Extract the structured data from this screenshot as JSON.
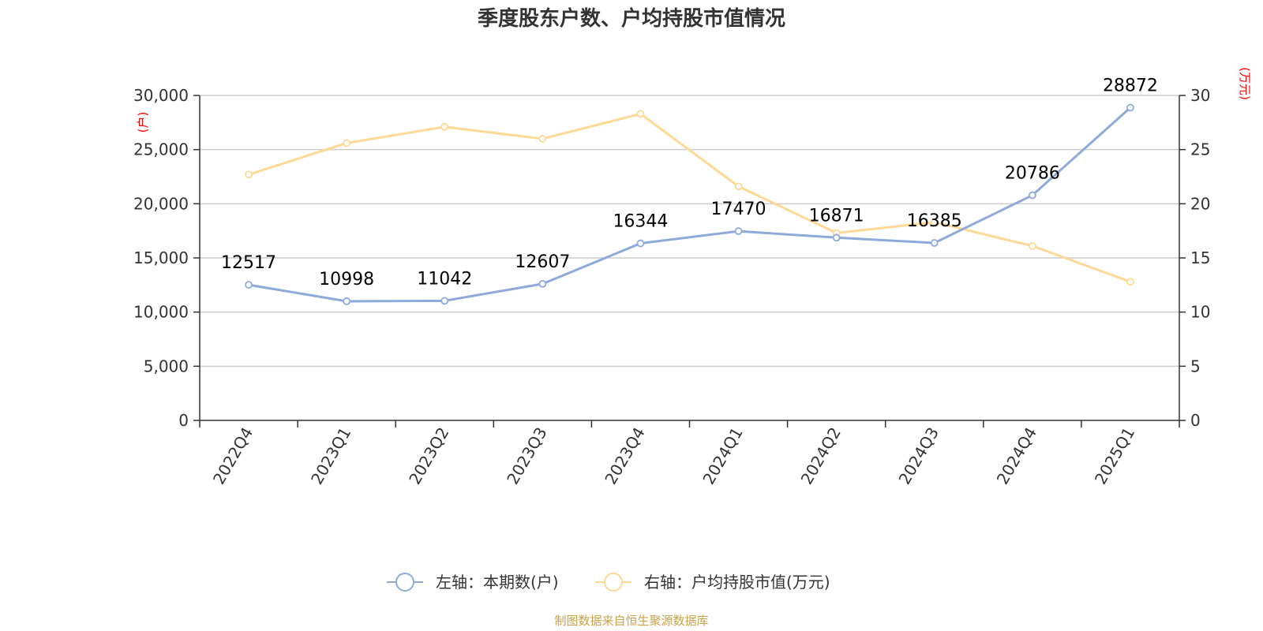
{
  "chart_data": {
    "type": "line",
    "title": "季度股东户数、户均持股市值情况",
    "categories": [
      "2022Q4",
      "2023Q1",
      "2023Q2",
      "2023Q3",
      "2023Q4",
      "2024Q1",
      "2024Q2",
      "2024Q3",
      "2024Q4",
      "2025Q1"
    ],
    "left_axis": {
      "unit": "(户)",
      "ylim": [
        0,
        30000
      ],
      "ticks": [
        "0",
        "5,000",
        "10,000",
        "15,000",
        "20,000",
        "25,000",
        "30,000"
      ]
    },
    "right_axis": {
      "unit": "(万元)",
      "ylim": [
        0,
        30
      ],
      "ticks": [
        "0",
        "5",
        "10",
        "15",
        "20",
        "25",
        "30"
      ]
    },
    "series": [
      {
        "name": "左轴：本期数(户)",
        "axis": "left",
        "color": "#8eaadb",
        "values": [
          12517,
          10998,
          11042,
          12607,
          16344,
          17470,
          16871,
          16385,
          20786,
          28872
        ],
        "labels": [
          "12517",
          "10998",
          "11042",
          "12607",
          "16344",
          "17470",
          "16871",
          "16385",
          "20786",
          "28872"
        ]
      },
      {
        "name": "右轴：户均持股市值(万元)",
        "axis": "right",
        "color": "#fdd995",
        "values": [
          22.7,
          25.6,
          27.1,
          26.0,
          28.3,
          21.6,
          17.3,
          18.3,
          16.1,
          12.8
        ]
      }
    ],
    "grid": true,
    "legend_position": "bottom"
  },
  "source_text": "制图数据来自恒生聚源数据库"
}
